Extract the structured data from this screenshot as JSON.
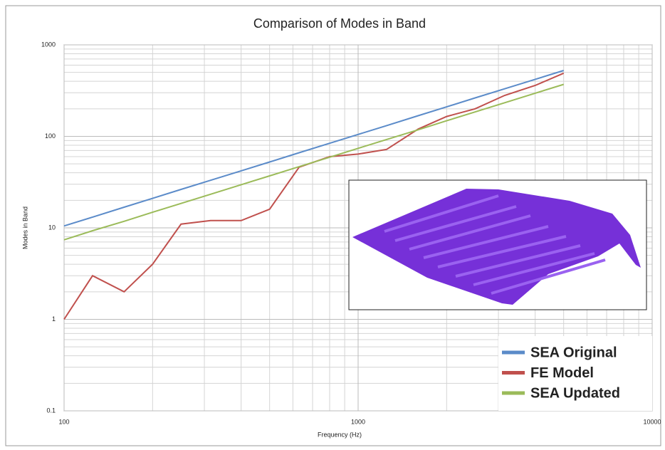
{
  "chart_data": {
    "type": "line",
    "title": "Comparison of Modes in Band",
    "x_label": "Frequency (Hz)",
    "y_label": "Modes in Band",
    "x": [
      100,
      125,
      160,
      200,
      250,
      315,
      400,
      500,
      630,
      800,
      1000,
      1250,
      1600,
      2000,
      2500,
      3150,
      4000,
      5000
    ],
    "series": [
      {
        "name": "SEA Original",
        "color": "#5b8bc9",
        "values": [
          10.5,
          13.1,
          16.8,
          21,
          26.3,
          33.1,
          42,
          52.5,
          66.2,
          84,
          105,
          131,
          168,
          210,
          263,
          331,
          420,
          525
        ]
      },
      {
        "name": "FE Model",
        "color": "#c0504d",
        "values": [
          1,
          3,
          2,
          4,
          11,
          12,
          12,
          16,
          46,
          60,
          64,
          72,
          120,
          165,
          200,
          280,
          360,
          490
        ]
      },
      {
        "name": "SEA Updated",
        "color": "#9bbb59",
        "values": [
          7.4,
          9.3,
          11.8,
          14.8,
          18.5,
          23.3,
          29.6,
          37,
          46.6,
          59.2,
          74,
          92.5,
          118,
          148,
          185,
          233,
          296,
          370
        ]
      }
    ],
    "xlim": [
      100,
      10000
    ],
    "ylim": [
      0.1,
      1000
    ],
    "xticks": [
      100,
      1000,
      10000
    ],
    "yticks": [
      0.1,
      1,
      10,
      100,
      1000
    ],
    "log_x": true,
    "log_y": true,
    "grid": true,
    "legend": "bottom-right"
  }
}
